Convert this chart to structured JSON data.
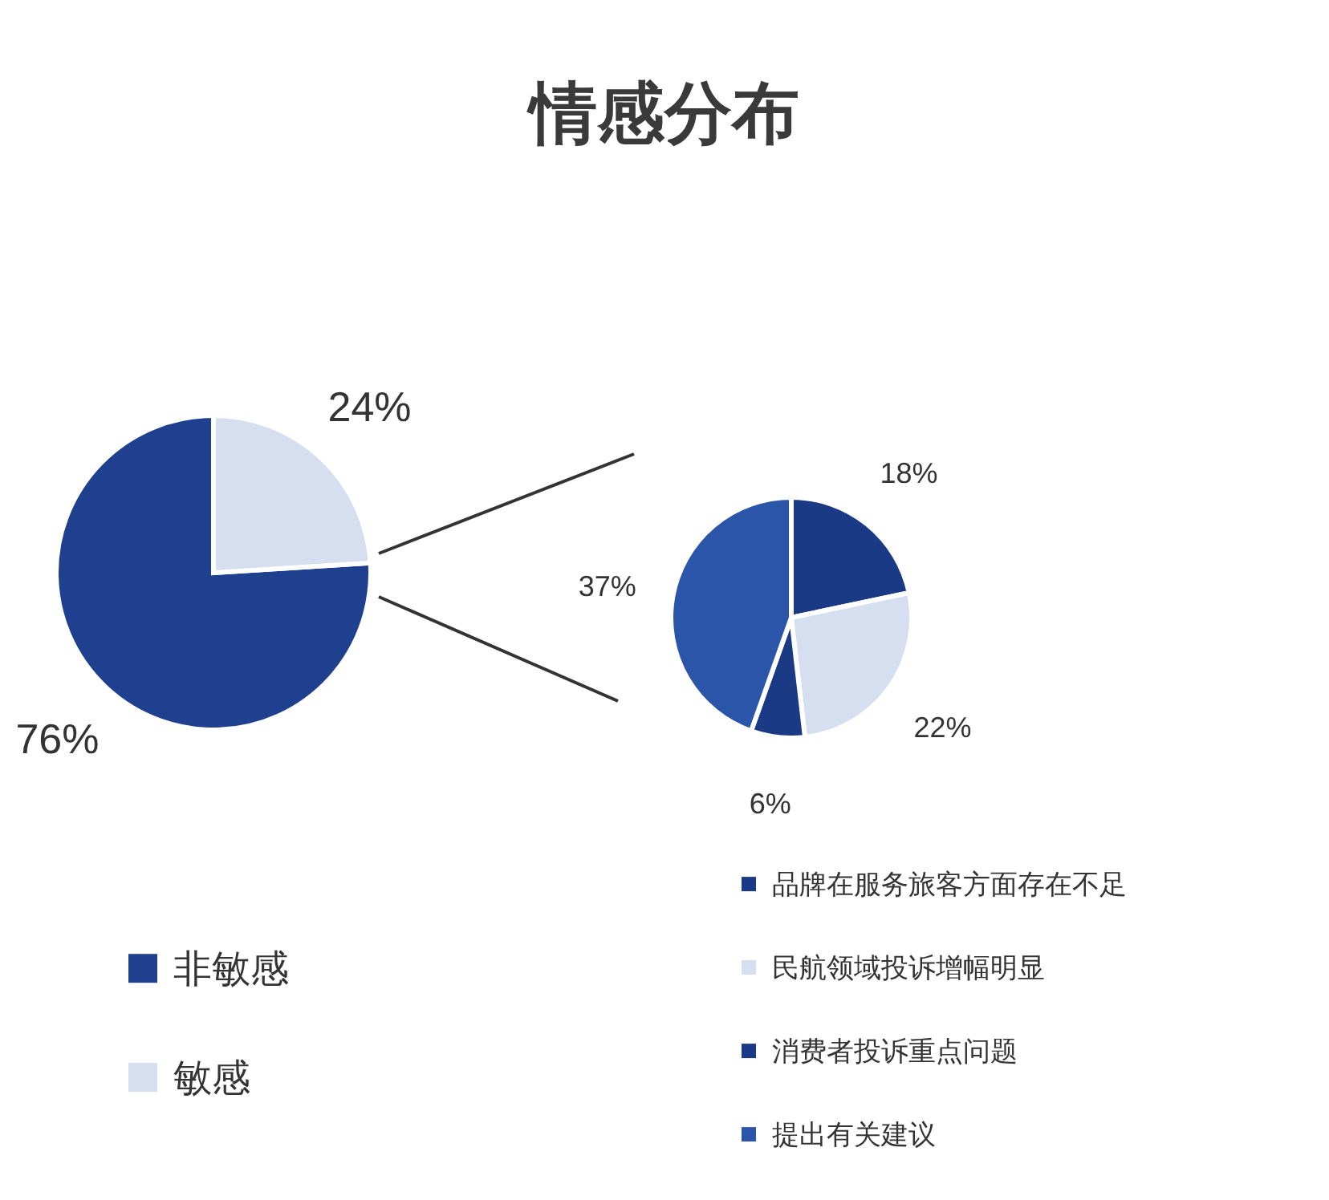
{
  "chart_data": [
    {
      "type": "pie",
      "title": "情感分布",
      "categories": [
        "非敏感",
        "敏感"
      ],
      "values": [
        76,
        24
      ],
      "colors": [
        "#1f3f8f",
        "#d5dff0"
      ],
      "value_labels": [
        "76%",
        "24%"
      ],
      "legend": "bottom left"
    },
    {
      "type": "pie",
      "categories": [
        "品牌在服务旅客方面存在不足",
        "民航领域投诉增幅明显",
        "消费者投诉重点问题",
        "提出有关建议"
      ],
      "values": [
        18,
        22,
        6,
        37
      ],
      "colors": [
        "#1a3a85",
        "#d5dff0",
        "#1a3a85",
        "#2b55a8"
      ],
      "value_labels": [
        "18%",
        "22%",
        "6%",
        "37%"
      ],
      "legend": "bottom"
    }
  ]
}
